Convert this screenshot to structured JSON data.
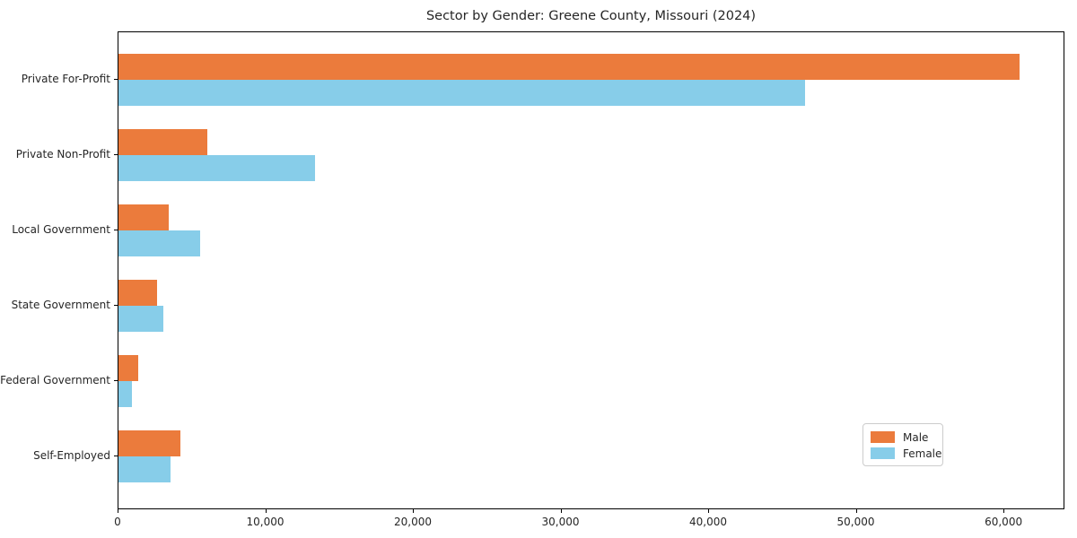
{
  "title": "Sector by Gender: Greene County, Missouri (2024)",
  "colors": {
    "male": "#EB7B3C",
    "female": "#87CDE9",
    "spine": "#000000",
    "text": "#262626",
    "legend_border": "#cccccc",
    "background": "#ffffff"
  },
  "chart_data": {
    "type": "bar",
    "orientation": "horizontal",
    "title": "Sector by Gender: Greene County, Missouri (2024)",
    "xlabel": "",
    "ylabel": "",
    "categories": [
      "Private For-Profit",
      "Private Non-Profit",
      "Local Government",
      "State Government",
      "Federal Government",
      "Self-Employed"
    ],
    "series": [
      {
        "name": "Male",
        "color": "#EB7B3C",
        "values": [
          61000,
          6000,
          3400,
          2600,
          1350,
          4200
        ]
      },
      {
        "name": "Female",
        "color": "#87CDE9",
        "values": [
          46500,
          13300,
          5500,
          3050,
          900,
          3550
        ]
      }
    ],
    "xlim": [
      0,
      64130
    ],
    "xticks": [
      0,
      10000,
      20000,
      30000,
      40000,
      50000,
      60000
    ],
    "xtick_labels": [
      "0",
      "10,000",
      "20,000",
      "30,000",
      "40,000",
      "50,000",
      "60,000"
    ],
    "grid": false,
    "legend": {
      "position": "lower right",
      "entries": [
        "Male",
        "Female"
      ]
    }
  }
}
